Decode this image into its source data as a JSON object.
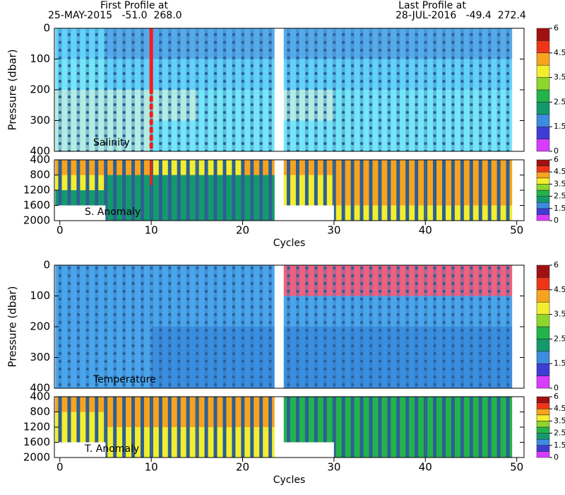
{
  "header": {
    "first_label": "First Profile at",
    "first_info": "25-MAY-2015   -51.0  268.0",
    "last_label": "Last Profile at",
    "last_info": "28-JUL-2016   -49.4  272.4"
  },
  "chart_data": [
    {
      "type": "heatmap",
      "label": "Salinity",
      "ylabel": "Pressure (dbar)",
      "xlim": [
        -0.6,
        50.8
      ],
      "ylim": [
        0,
        400
      ],
      "yticks": [
        0,
        100,
        200,
        300,
        400
      ],
      "y_inverted": true,
      "x_edges": [
        -0.5,
        5,
        10,
        15,
        20,
        23.5,
        24.5,
        30,
        35,
        40,
        45,
        49.5
      ],
      "y_edges": [
        0,
        100,
        200,
        300,
        400
      ],
      "values": [
        [
          34.15,
          34.1,
          34.1,
          34.1,
          34.1,
          null,
          34.1,
          34.1,
          34.1,
          34.1,
          34.1
        ],
        [
          34.2,
          34.15,
          34.15,
          34.15,
          34.15,
          null,
          34.15,
          34.15,
          34.15,
          34.15,
          34.15
        ],
        [
          34.35,
          34.35,
          34.35,
          34.25,
          34.25,
          null,
          34.35,
          34.25,
          34.25,
          34.25,
          34.25
        ],
        [
          34.35,
          34.35,
          34.25,
          34.25,
          34.25,
          null,
          34.25,
          34.25,
          34.25,
          34.25,
          34.25
        ]
      ],
      "field_levels": [
        34.0,
        34.12,
        34.2,
        34.3,
        34.4
      ],
      "field_colors": [
        "#55aaea",
        "#62d2fa",
        "#74e6f8",
        "#b3ece2"
      ],
      "colorbar": {
        "levels": [
          0,
          1,
          1.5,
          2,
          2.5,
          3,
          3.5,
          4,
          4.5,
          5,
          6
        ],
        "colors": [
          "#d93cff",
          "#3d3dd6",
          "#3d8ce0",
          "#139a6c",
          "#22b44a",
          "#8fd62c",
          "#f2ee2e",
          "#f7a31e",
          "#ef3518",
          "#a01212"
        ],
        "ticks": [
          0,
          1.5,
          2.5,
          3.5,
          4.5,
          6
        ]
      },
      "highlight": {
        "cycle": 10,
        "color": "#ff1a1a"
      }
    },
    {
      "type": "heatmap",
      "label": "S. Anomaly",
      "xlabel": "Cycles",
      "xlim": [
        -0.6,
        50.8
      ],
      "xticks": [
        0,
        10,
        20,
        30,
        40,
        50
      ],
      "ylim": [
        400,
        2000
      ],
      "yticks": [
        400,
        800,
        1200,
        1600,
        2000
      ],
      "y_inverted": true,
      "x_edges": [
        -0.5,
        5,
        10,
        15,
        20,
        23.5,
        24.5,
        30,
        35,
        40,
        45,
        49.5
      ],
      "y_edges": [
        400,
        800,
        1200,
        1600,
        2000
      ],
      "values": [
        [
          4.2,
          4.2,
          3.8,
          3.8,
          4.2,
          null,
          4.2,
          4.2,
          4.2,
          4.2,
          4.2
        ],
        [
          3.8,
          2.2,
          2.2,
          2.2,
          2.2,
          null,
          3.8,
          4.2,
          4.2,
          4.2,
          4.2
        ],
        [
          2.2,
          2.2,
          2.2,
          2.2,
          2.2,
          null,
          3.8,
          4.2,
          4.2,
          4.2,
          4.2
        ],
        [
          null,
          2.2,
          2.2,
          2.2,
          2.2,
          null,
          null,
          3.8,
          3.8,
          3.8,
          3.8
        ]
      ],
      "colorbar": {
        "levels": [
          0,
          1,
          1.5,
          2,
          2.5,
          3,
          3.5,
          4,
          4.5,
          5,
          6
        ],
        "colors": [
          "#d93cff",
          "#3d3dd6",
          "#3d8ce0",
          "#139a6c",
          "#22b44a",
          "#8fd62c",
          "#f2ee2e",
          "#f7a31e",
          "#ef3518",
          "#a01212"
        ],
        "ticks": [
          0,
          1.5,
          2.5,
          3.5,
          4.5,
          6
        ]
      },
      "highlight": {
        "cycle": 10,
        "color": "#ff1a1a"
      }
    },
    {
      "type": "heatmap",
      "label": "Temperature",
      "ylabel": "Pressure (dbar)",
      "xlim": [
        -0.6,
        50.8
      ],
      "ylim": [
        0,
        400
      ],
      "yticks": [
        0,
        100,
        200,
        300,
        400
      ],
      "y_inverted": true,
      "x_edges": [
        -0.5,
        5,
        10,
        15,
        20,
        23.5,
        24.5,
        30,
        35,
        40,
        45,
        49.5
      ],
      "y_edges": [
        0,
        100,
        200,
        300,
        400
      ],
      "values": [
        [
          5.5,
          5.5,
          5.5,
          5.5,
          5.5,
          null,
          8.5,
          8.5,
          8.5,
          8.5,
          8.0
        ],
        [
          5.5,
          5.5,
          5.5,
          5.5,
          5.5,
          null,
          5.5,
          5.5,
          5.5,
          5.5,
          5.5
        ],
        [
          5.5,
          5.5,
          4.5,
          4.5,
          4.5,
          null,
          4.5,
          4.5,
          4.5,
          4.5,
          4.5
        ],
        [
          5.5,
          5.5,
          4.5,
          4.5,
          4.5,
          null,
          4.5,
          4.5,
          4.5,
          4.5,
          4.5
        ]
      ],
      "field_levels": [
        4,
        5,
        6,
        7,
        8,
        9
      ],
      "field_colors": [
        "#3a8ee0",
        "#4aa6ec",
        "#66d6f6",
        "#f7a0b8",
        "#f0607f"
      ],
      "colorbar": {
        "levels": [
          0,
          1,
          1.5,
          2,
          2.5,
          3,
          3.5,
          4,
          4.5,
          5,
          6
        ],
        "colors": [
          "#d93cff",
          "#3d3dd6",
          "#3d8ce0",
          "#139a6c",
          "#22b44a",
          "#8fd62c",
          "#f2ee2e",
          "#f7a31e",
          "#ef3518",
          "#a01212"
        ],
        "ticks": [
          0,
          1.5,
          2.5,
          3.5,
          4.5,
          6
        ]
      }
    },
    {
      "type": "heatmap",
      "label": "T. Anomaly",
      "xlabel": "Cycles",
      "xlim": [
        -0.6,
        50.8
      ],
      "xticks": [
        0,
        10,
        20,
        30,
        40,
        50
      ],
      "ylim": [
        400,
        2000
      ],
      "yticks": [
        400,
        800,
        1200,
        1600,
        2000
      ],
      "y_inverted": true,
      "x_edges": [
        -0.5,
        5,
        10,
        15,
        20,
        23.5,
        24.5,
        30,
        35,
        40,
        45,
        49.5
      ],
      "y_edges": [
        400,
        800,
        1200,
        1600,
        2000
      ],
      "values": [
        [
          4.2,
          4.2,
          4.2,
          4.2,
          4.2,
          null,
          2.7,
          2.7,
          2.7,
          2.7,
          2.7
        ],
        [
          3.8,
          4.2,
          4.2,
          4.2,
          4.2,
          null,
          2.7,
          2.7,
          2.7,
          2.7,
          2.7
        ],
        [
          3.8,
          3.8,
          3.8,
          3.8,
          3.8,
          null,
          2.7,
          2.7,
          2.7,
          2.7,
          2.7
        ],
        [
          null,
          3.8,
          3.8,
          3.8,
          3.8,
          null,
          null,
          2.7,
          2.7,
          2.7,
          2.7
        ]
      ],
      "colorbar": {
        "levels": [
          0,
          1,
          1.5,
          2,
          2.5,
          3,
          3.5,
          4,
          4.5,
          5,
          6
        ],
        "colors": [
          "#d93cff",
          "#3d3dd6",
          "#3d8ce0",
          "#139a6c",
          "#22b44a",
          "#8fd62c",
          "#f2ee2e",
          "#f7a31e",
          "#ef3518",
          "#a01212"
        ],
        "ticks": [
          0,
          1.5,
          2.5,
          3.5,
          4.5,
          6
        ]
      }
    }
  ]
}
